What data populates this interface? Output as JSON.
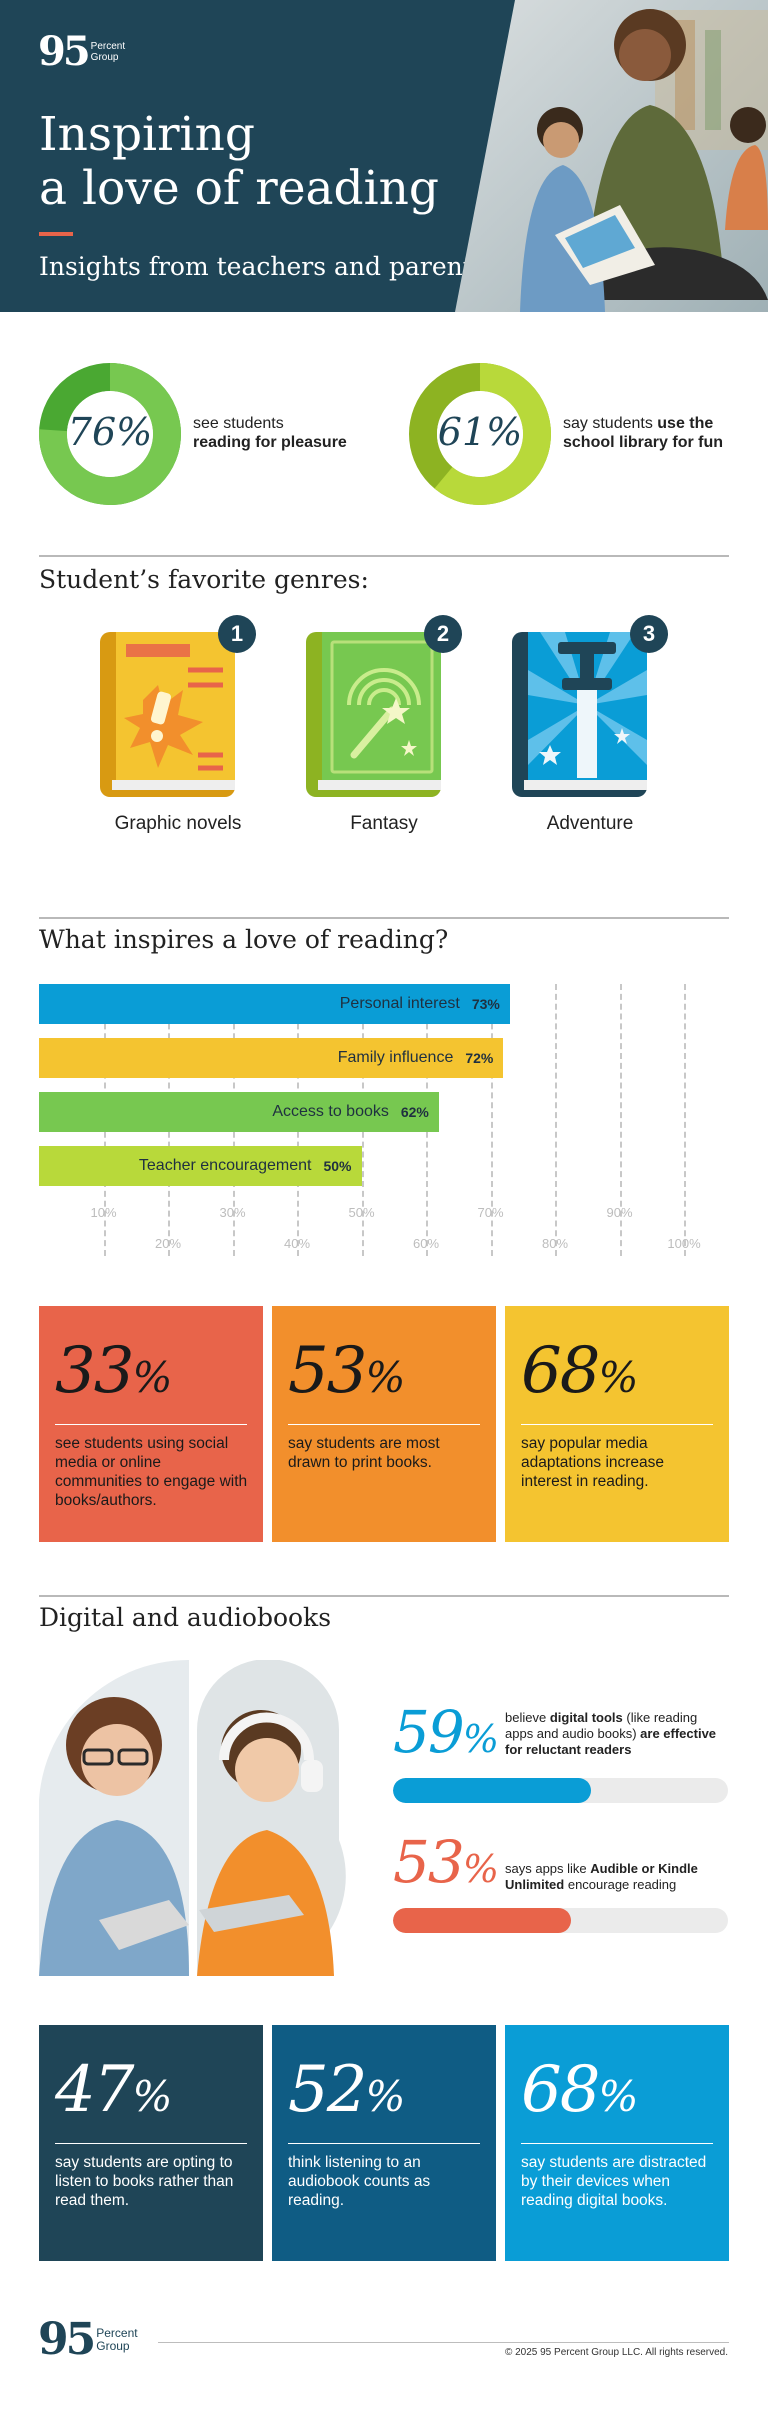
{
  "colors": {
    "navy": "#1f4557",
    "coral": "#e8644a",
    "orange": "#f28f2c",
    "yellow": "#f4c430",
    "green": "#77c850",
    "lime": "#b8d93a",
    "blue": "#0a9dd6"
  },
  "brand": {
    "num": "95",
    "line1": "Percent",
    "line2": "Group"
  },
  "hero": {
    "title_line1": "Inspiring",
    "title_line2": "a love of reading",
    "subtitle": "Insights from teachers and parents"
  },
  "rings": [
    {
      "value": 76,
      "pct": "76%",
      "text_normal": "see students",
      "text_bold": "reading for pleasure"
    },
    {
      "value": 61,
      "pct": "61%",
      "text_normal": "say students",
      "text_bold_1": "use the",
      "text_bold_2": "school library for fun"
    }
  ],
  "genres": {
    "title": "Student’s favorite genres:",
    "items": [
      {
        "rank": "1",
        "label": "Graphic novels",
        "icon": "graphic-novel-book-icon"
      },
      {
        "rank": "2",
        "label": "Fantasy",
        "icon": "fantasy-wand-book-icon"
      },
      {
        "rank": "3",
        "label": "Adventure",
        "icon": "adventure-sword-book-icon"
      }
    ]
  },
  "chart_data": {
    "type": "bar",
    "title": "What inspires a love of reading?",
    "orientation": "horizontal",
    "categories": [
      "Personal interest",
      "Family influence",
      "Access to books",
      "Teacher encouragement"
    ],
    "values": [
      73,
      72,
      62,
      50
    ],
    "value_labels": [
      "73%",
      "72%",
      "62%",
      "50%"
    ],
    "xlim": [
      0,
      100
    ],
    "ticks_top_row": [
      "10%",
      "30%",
      "50%",
      "70%",
      "90%"
    ],
    "ticks_bottom_row": [
      "20%",
      "40%",
      "60%",
      "80%",
      "100%"
    ],
    "grid": true
  },
  "media_cards": [
    {
      "stat": "33",
      "caption": "see students using social media or online communities to engage with books/authors."
    },
    {
      "stat": "53",
      "caption": "say students are most drawn to print books."
    },
    {
      "stat": "68",
      "caption": "say popular media adaptations increase interest in reading."
    }
  ],
  "digital": {
    "title": "Digital and audiobooks",
    "stat1": {
      "value": 59,
      "num": "59",
      "t1": "believe",
      "b1": "digital tools",
      "t2": " (like reading apps and audio books) ",
      "b2": "are effective for reluctant readers"
    },
    "stat2": {
      "value": 53,
      "num": "53",
      "t1": "says apps like",
      "b1": "Audible or Kindle Unlimited",
      "t2": " encourage reading"
    }
  },
  "audio_cards": [
    {
      "stat": "47",
      "caption": "say students are opting to listen to books rather than read them."
    },
    {
      "stat": "52",
      "caption": "think listening to an audiobook counts as reading."
    },
    {
      "stat": "68",
      "caption": "say students are distracted by their devices when reading digital books."
    }
  ],
  "percent_sign": "%",
  "footer": {
    "copyright": "© 2025 95 Percent Group LLC. All rights reserved."
  }
}
